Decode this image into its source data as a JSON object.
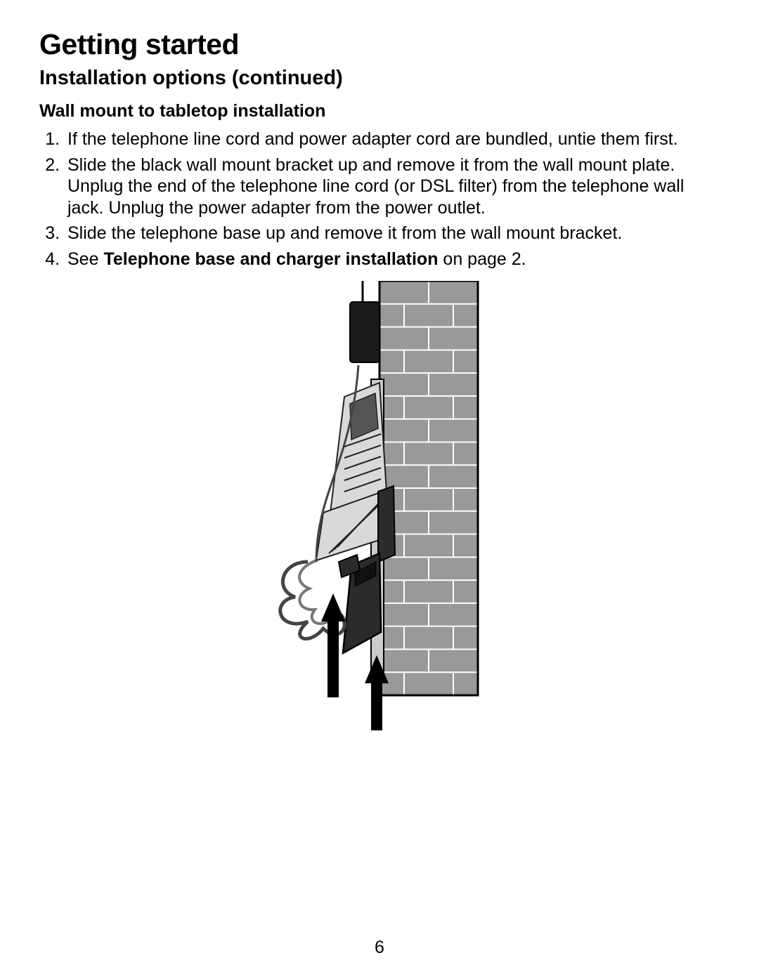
{
  "heading": "Getting started",
  "subheading": "Installation options (continued)",
  "section_title": "Wall mount to tabletop installation",
  "steps": [
    {
      "num": "1.",
      "text": "If the telephone line cord and power adapter cord are bundled, untie them first."
    },
    {
      "num": "2.",
      "text": "Slide the black wall mount bracket up and remove it from the wall mount plate. Unplug the end of the telephone line cord (or DSL filter) from the telephone wall jack. Unplug the power adapter from the power outlet."
    },
    {
      "num": "3.",
      "text": "Slide the telephone base up and remove it from the wall mount bracket."
    },
    {
      "num": "4.",
      "prefix": "See ",
      "bold": "Telephone base and charger installation",
      "suffix": " on page 2."
    }
  ],
  "page_number": "6",
  "figure": {
    "colors": {
      "wall_brick_fill": "#999999",
      "wall_brick_stroke": "#ffffff",
      "wall_outline": "#000000",
      "plate_fill": "#cccccc",
      "bracket_fill": "#2b2b2b",
      "phone_fill": "#d9d9d9",
      "phone_dark": "#555555",
      "phone_stroke": "#222222",
      "cord_color": "#444444",
      "arrow_fill": "#000000",
      "outlet_fill": "#1a1a1a"
    },
    "layout": {
      "brick_rows": 18,
      "brick_cols": 2
    }
  }
}
